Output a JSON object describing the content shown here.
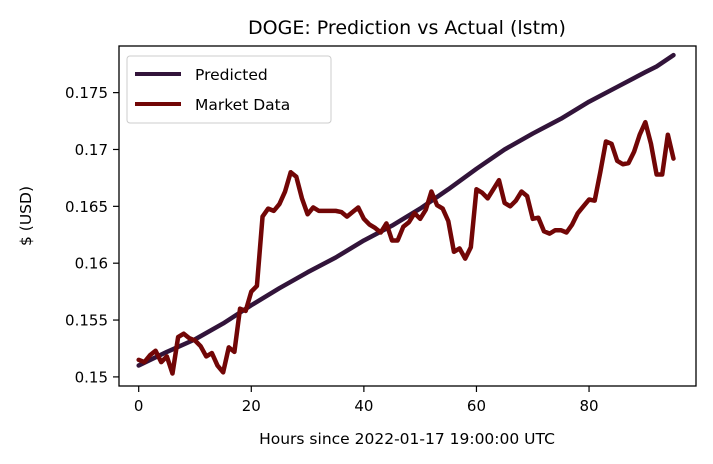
{
  "chart_data": {
    "type": "line",
    "title": "DOGE: Prediction vs Actual (lstm)",
    "xlabel": "Hours since 2022-01-17 19:00:00 UTC",
    "ylabel": "$ (USD)",
    "xlim": [
      -3.5,
      99
    ],
    "ylim": [
      0.1492,
      0.1791
    ],
    "x_ticks": [
      0,
      20,
      40,
      60,
      80
    ],
    "x_tick_labels": [
      "0",
      "20",
      "40",
      "60",
      "80"
    ],
    "y_ticks": [
      0.15,
      0.155,
      0.16,
      0.165,
      0.17,
      0.175
    ],
    "y_tick_labels": [
      "0.15",
      "0.155",
      "0.16",
      "0.165",
      "0.17",
      "0.175"
    ],
    "grid": false,
    "legend_position": "top-left",
    "series": [
      {
        "name": "Predicted",
        "color": "#32143a",
        "x": [
          0,
          5,
          10,
          15,
          20,
          25,
          30,
          35,
          40,
          45,
          50,
          55,
          60,
          65,
          70,
          75,
          80,
          85,
          90,
          92,
          95
        ],
        "values": [
          0.151,
          0.1522,
          0.1533,
          0.1547,
          0.1563,
          0.1578,
          0.1592,
          0.1605,
          0.162,
          0.1633,
          0.1648,
          0.1665,
          0.1683,
          0.17,
          0.1714,
          0.1727,
          0.1742,
          0.1755,
          0.1768,
          0.1773,
          0.1783
        ]
      },
      {
        "name": "Market Data",
        "color": "#720606",
        "x": [
          0,
          1,
          2,
          3,
          4,
          5,
          6,
          7,
          8,
          9,
          10,
          11,
          12,
          13,
          14,
          15,
          16,
          17,
          18,
          19,
          20,
          21,
          22,
          23,
          24,
          25,
          26,
          27,
          28,
          29,
          30,
          31,
          32,
          33,
          34,
          35,
          36,
          37,
          38,
          39,
          40,
          41,
          42,
          43,
          44,
          45,
          46,
          47,
          48,
          49,
          50,
          51,
          52,
          53,
          54,
          55,
          56,
          57,
          58,
          59,
          60,
          61,
          62,
          63,
          64,
          65,
          66,
          67,
          68,
          69,
          70,
          71,
          72,
          73,
          74,
          75,
          76,
          77,
          78,
          79,
          80,
          81,
          82,
          83,
          84,
          85,
          86,
          87,
          88,
          89,
          90,
          91,
          92,
          93,
          94,
          95
        ],
        "values": [
          0.1515,
          0.1513,
          0.1519,
          0.1523,
          0.1513,
          0.1518,
          0.1503,
          0.1535,
          0.1538,
          0.1534,
          0.1532,
          0.1527,
          0.1518,
          0.1521,
          0.151,
          0.1504,
          0.1526,
          0.1522,
          0.156,
          0.1558,
          0.1575,
          0.158,
          0.1641,
          0.1648,
          0.1646,
          0.1652,
          0.1663,
          0.168,
          0.1676,
          0.1657,
          0.1643,
          0.1649,
          0.1646,
          0.1646,
          0.1646,
          0.1646,
          0.1645,
          0.1641,
          0.1645,
          0.1649,
          0.1639,
          0.1634,
          0.1631,
          0.1627,
          0.1635,
          0.162,
          0.162,
          0.1632,
          0.1636,
          0.1644,
          0.1639,
          0.1647,
          0.1663,
          0.1651,
          0.1648,
          0.1637,
          0.161,
          0.1613,
          0.1604,
          0.1614,
          0.1665,
          0.1662,
          0.1657,
          0.1665,
          0.1673,
          0.1653,
          0.165,
          0.1655,
          0.1663,
          0.1659,
          0.1639,
          0.164,
          0.1628,
          0.1626,
          0.1629,
          0.1629,
          0.1627,
          0.1634,
          0.1644,
          0.165,
          0.1656,
          0.1655,
          0.168,
          0.1707,
          0.1705,
          0.169,
          0.1687,
          0.1688,
          0.1698,
          0.1713,
          0.1724,
          0.1705,
          0.1678,
          0.1678,
          0.1713,
          0.1692
        ]
      }
    ]
  }
}
